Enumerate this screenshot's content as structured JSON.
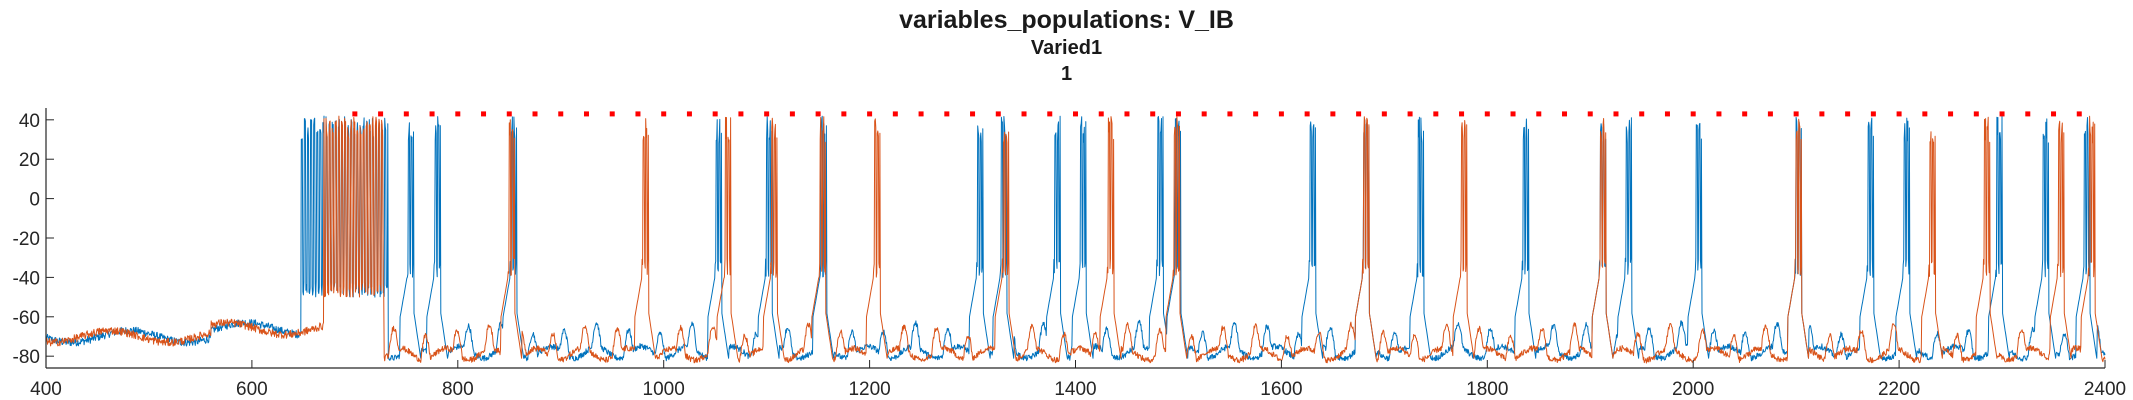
{
  "chart_data": {
    "type": "line",
    "title": "variables_populations: V_IB",
    "subtitle_1": "Varied1",
    "subtitle_2": "1",
    "xlim": [
      400,
      2400
    ],
    "ylim": [
      -86,
      46
    ],
    "x_ticks": [
      400,
      600,
      800,
      1000,
      1200,
      1400,
      1600,
      1800,
      2000,
      2200,
      2400
    ],
    "y_ticks": [
      -80,
      -60,
      -40,
      -20,
      0,
      20,
      40
    ],
    "grid": false,
    "series": [
      {
        "color": "#0072BD",
        "initial_burst": [
          648,
          732
        ],
        "bursts": [
          752,
          778,
          852,
          1051,
          1100,
          1153,
          1305,
          1328,
          1380,
          1405,
          1480,
          1497,
          1628,
          1680,
          1733,
          1835,
          1910,
          1935,
          2003,
          2100,
          2170,
          2205,
          2295,
          2340,
          2380
        ],
        "baseline_mean": -78
      },
      {
        "color": "#D95319",
        "initial_burst": [
          670,
          728
        ],
        "bursts": [
          850,
          980,
          1060,
          1105,
          1152,
          1205,
          1330,
          1432,
          1496,
          1680,
          1775,
          1910,
          2100,
          2230,
          2283,
          2355,
          2385
        ],
        "baseline_mean": -79
      },
      {
        "name": "",
        "color": "#FF0000",
        "marker": "square",
        "y": 43,
        "x_start": 700,
        "x_step": 25,
        "x_end": 2380
      }
    ]
  }
}
